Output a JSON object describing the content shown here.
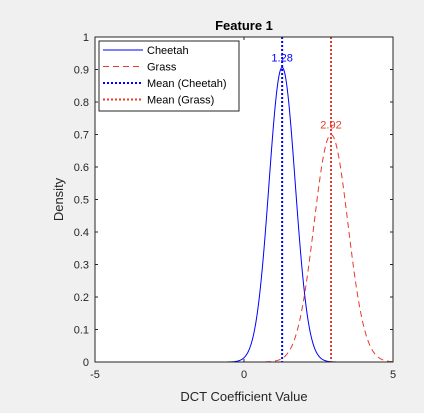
{
  "chart_data": {
    "type": "line",
    "title": "Feature 1",
    "xlabel": "DCT Coefficient Value",
    "ylabel": "Density",
    "xlim": [
      -5,
      5
    ],
    "ylim": [
      0,
      1
    ],
    "xticks": [
      -5,
      0,
      5
    ],
    "yticks": [
      0,
      0.1,
      0.2,
      0.3,
      0.4,
      0.5,
      0.6,
      0.7,
      0.8,
      0.9,
      1
    ],
    "grid": false,
    "legend_position": "top-left",
    "series": [
      {
        "name": "Cheetah",
        "style": "solid",
        "color": "#0000ff",
        "distribution": "normal",
        "mean": 1.28,
        "std": 0.44
      },
      {
        "name": "Grass",
        "style": "dashed",
        "color": "#e8392a",
        "distribution": "normal",
        "mean": 2.92,
        "std": 0.57
      },
      {
        "name": "Mean (Cheetah)",
        "style": "dotted",
        "color": "#0000ff",
        "vline_x": 1.28
      },
      {
        "name": "Mean (Grass)",
        "style": "dotted",
        "color": "#e8392a",
        "vline_x": 2.92
      }
    ],
    "annotations": [
      {
        "text": "1.28",
        "x": 1.28,
        "color": "#0000ff"
      },
      {
        "text": "2.92",
        "x": 2.92,
        "color": "#e8392a"
      }
    ]
  }
}
